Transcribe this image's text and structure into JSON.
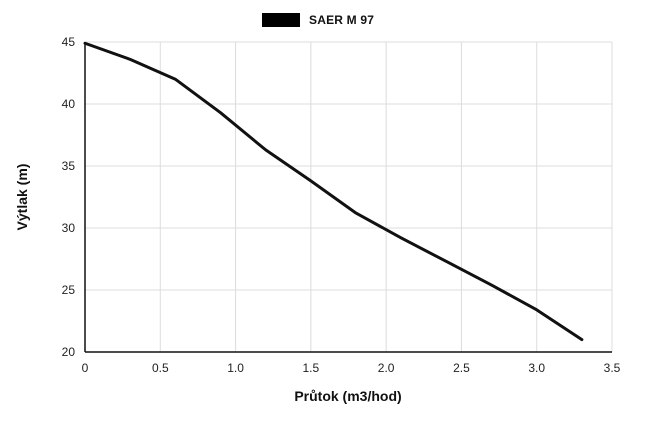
{
  "legend": {
    "label": "SAER M 97",
    "swatch_color": "#000000"
  },
  "chart_data": {
    "type": "line",
    "title": "",
    "xlabel": "Průtok (m3/hod)",
    "ylabel": "Výtlak (m)",
    "xlim": [
      0,
      3.5
    ],
    "ylim": [
      20,
      45
    ],
    "grid": true,
    "legend_position": "top-center",
    "x_ticks": [
      0,
      0.5,
      1.0,
      1.5,
      2.0,
      2.5,
      3.0,
      3.5
    ],
    "x_tick_labels": [
      "0",
      "0.5",
      "1.0",
      "1.5",
      "2.0",
      "2.5",
      "3.0",
      "3.5"
    ],
    "y_ticks": [
      20,
      25,
      30,
      35,
      40,
      45
    ],
    "y_tick_labels": [
      "20",
      "25",
      "30",
      "35",
      "40",
      "45"
    ],
    "grid_color": "#dcdcdc",
    "axis_color": "#111111",
    "series": [
      {
        "name": "SAER M 97",
        "color": "#111111",
        "x": [
          0,
          0.3,
          0.6,
          0.9,
          1.2,
          1.5,
          1.8,
          2.1,
          2.4,
          2.7,
          3.0,
          3.3
        ],
        "y": [
          44.9,
          43.6,
          42.0,
          39.3,
          36.3,
          33.8,
          31.2,
          29.2,
          27.3,
          25.4,
          23.4,
          21.0
        ]
      }
    ]
  }
}
